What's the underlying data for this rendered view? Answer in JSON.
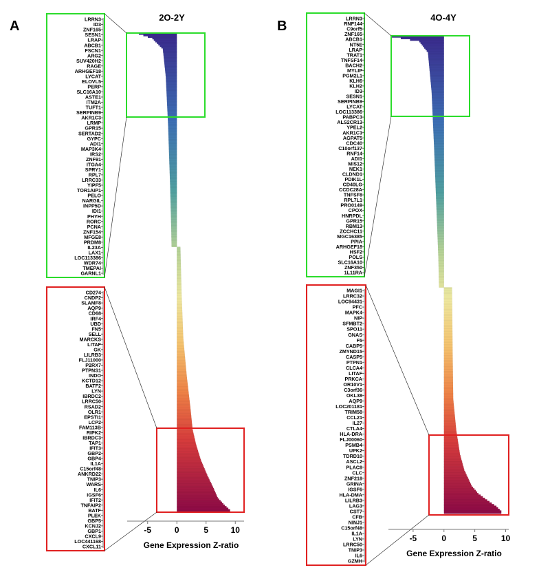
{
  "chart_data": [
    {
      "panel": "A",
      "title": "2O-2Y",
      "type": "bar",
      "orientation": "horizontal",
      "xlabel": "Gene Expression Z-ratio",
      "xlim": [
        -8.5,
        11.5
      ],
      "xticks": [
        -5,
        0,
        5,
        10
      ],
      "n_bars": 240,
      "neg_anchors": [
        [
          0,
          -6.5
        ],
        [
          3,
          -4.2
        ],
        [
          10,
          -2.4
        ],
        [
          28,
          -1.9
        ],
        [
          60,
          -1.5
        ],
        [
          100,
          -1.15
        ],
        [
          130,
          -0.95
        ],
        [
          140,
          -0.9
        ]
      ],
      "pos_anchors": [
        [
          0,
          0.6
        ],
        [
          30,
          0.8
        ],
        [
          60,
          1.1
        ],
        [
          85,
          1.7
        ],
        [
          105,
          2.3
        ],
        [
          120,
          2.7
        ],
        [
          130,
          3.3
        ],
        [
          140,
          4.1
        ],
        [
          150,
          5.2
        ],
        [
          158,
          6.2
        ],
        [
          165,
          7.0
        ],
        [
          170,
          8.2
        ],
        [
          173,
          9.1
        ],
        [
          174,
          9.1
        ]
      ],
      "down_genes": [
        "LRRN3",
        "ID3",
        "ZNF165",
        "SESN1",
        "LRAP",
        "ABCB1",
        "FSCN1",
        "ARG2",
        "SUV420H2",
        "RAGE",
        "ARHGEF18",
        "LYCAT",
        "ELOVL5",
        "PERP",
        "SLC16A10",
        "ASTE1",
        "ITM2A",
        "TUFT1",
        "SERPINB9",
        "AKR1C3",
        "LRMP",
        "GPR15",
        "SERTAD2",
        "GYPC",
        "ADI1",
        "MAP3K4",
        "IRS2",
        "ZNF91",
        "ITGA4",
        "SPRY1",
        "RPL7",
        "LRRC33",
        "YIPF5",
        "TOR1AIP1",
        "PELO",
        "NARGIL",
        "INPP5D",
        "IDI1",
        "PHYH",
        "RORC",
        "PCNA",
        "ZNF154",
        "MFGE8",
        "PRDM8",
        "IL23A",
        "LAX1",
        "LOC113386",
        "WDR74",
        "TMEPAI",
        "GARNL1"
      ],
      "up_genes": [
        "CD274",
        "CNDP2",
        "SLAMF8",
        "AQP9",
        "CD68",
        "IRF4",
        "UBD",
        "FN5",
        "SELL",
        "MARCKS",
        "LITAF",
        "GK",
        "LILRB3",
        "FLJ11000",
        "P2RX7",
        "PTPNS1",
        "INDO",
        "KCTD12",
        "BATF2",
        "LYN",
        "IBRDC2",
        "LRRC50",
        "RSAD2",
        "OLR1",
        "EPSTI1",
        "LCP2",
        "FAM113B",
        "RIPK2",
        "IBRDC3",
        "TAP1",
        "IFIT3",
        "GBP2",
        "GBP4",
        "IL1A",
        "C15orf48",
        "ANKRD22",
        "TNIP3",
        "WARS",
        "IL6",
        "IGSF6",
        "IFIT2",
        "TNFAIP2",
        "BATF",
        "PLEK",
        "GBP5",
        "KCNJ2",
        "GBP1",
        "CXCL9",
        "LOC441168",
        "CXCL11"
      ]
    },
    {
      "panel": "B",
      "title": "4O-4Y",
      "type": "bar",
      "orientation": "horizontal",
      "xlabel": "Gene Expression Z-ratio",
      "xlim": [
        -9.0,
        10.5
      ],
      "xticks": [
        -5,
        0,
        5,
        10
      ],
      "n_bars": 250,
      "neg_anchors": [
        [
          0,
          -8.5
        ],
        [
          3,
          -4.0
        ],
        [
          10,
          -2.6
        ],
        [
          35,
          -2.0
        ],
        [
          70,
          -1.6
        ],
        [
          110,
          -1.2
        ],
        [
          140,
          -0.9
        ],
        [
          158,
          -0.8
        ]
      ],
      "pos_anchors": [
        [
          0,
          1.3
        ],
        [
          40,
          1.4
        ],
        [
          70,
          1.5
        ],
        [
          90,
          2.0
        ],
        [
          105,
          2.6
        ],
        [
          115,
          3.3
        ],
        [
          125,
          4.5
        ],
        [
          130,
          5.6
        ],
        [
          134,
          7.0
        ],
        [
          138,
          8.5
        ],
        [
          141,
          9.3
        ],
        [
          142,
          9.3
        ]
      ],
      "down_genes": [
        "LRRN3",
        "RNF144",
        "C9orf5",
        "ZNF165",
        "ABCB1",
        "NT5E",
        "LRAP",
        "TRAT1",
        "TNFSF14",
        "BACH2",
        "MYLIP",
        "PGM2L1",
        "KLH6",
        "KLH2",
        "ID3",
        "SESN1",
        "SERPINB9",
        "LYCAT",
        "LOC113386",
        "PABPC3",
        "ALS2CR13",
        "YPEL2",
        "AKR1C3",
        "AGPAT5",
        "CDC40",
        "C10orf137",
        "RNF14",
        "ADI1",
        "MIS12",
        "NEK1",
        "CLDND1",
        "PDIK1L",
        "CD40LG",
        "CCDC28A",
        "TNFSF8",
        "RPL7L1",
        "PRO0149",
        "CPOX",
        "HNRPDL",
        "GPR15",
        "RBM13",
        "ZCCHC11",
        "MGC16385",
        "PPIA",
        "ARHGEF18",
        "HSF2",
        "POLS",
        "SLC16A10",
        "ZNF350",
        "1L11RA"
      ],
      "up_genes": [
        "MAGI1",
        "LRRC32",
        "LOC94431",
        "PFC",
        "MAPK4",
        "NIP",
        "SFMBT2",
        "SPO11",
        "GNAS",
        "F5",
        "CABP5",
        "ZMYND15",
        "CASP5",
        "PTPN1",
        "CLCA4",
        "LITAF",
        "PRKCA",
        "OR10V1",
        "C3orf36",
        "OKL38",
        "AQP9",
        "LOC201181",
        "TRIM58",
        "CCL21",
        "IL27",
        "CTLA4",
        "HLA-DRA",
        "FLJ00060",
        "PSMB4",
        "UPK2",
        "TDRD10",
        "ASCL2",
        "PLAC8",
        "CLC",
        "ZNF218",
        "GRINA",
        "IGSF6",
        "HLA-DMA",
        "LILRB3",
        "LAG3",
        "CST7",
        "CFB",
        "NINJ1",
        "C15orf48",
        "IL1A",
        "LYN",
        "LRRC50",
        "TNIP3",
        "IL6",
        "GZMH"
      ]
    }
  ]
}
